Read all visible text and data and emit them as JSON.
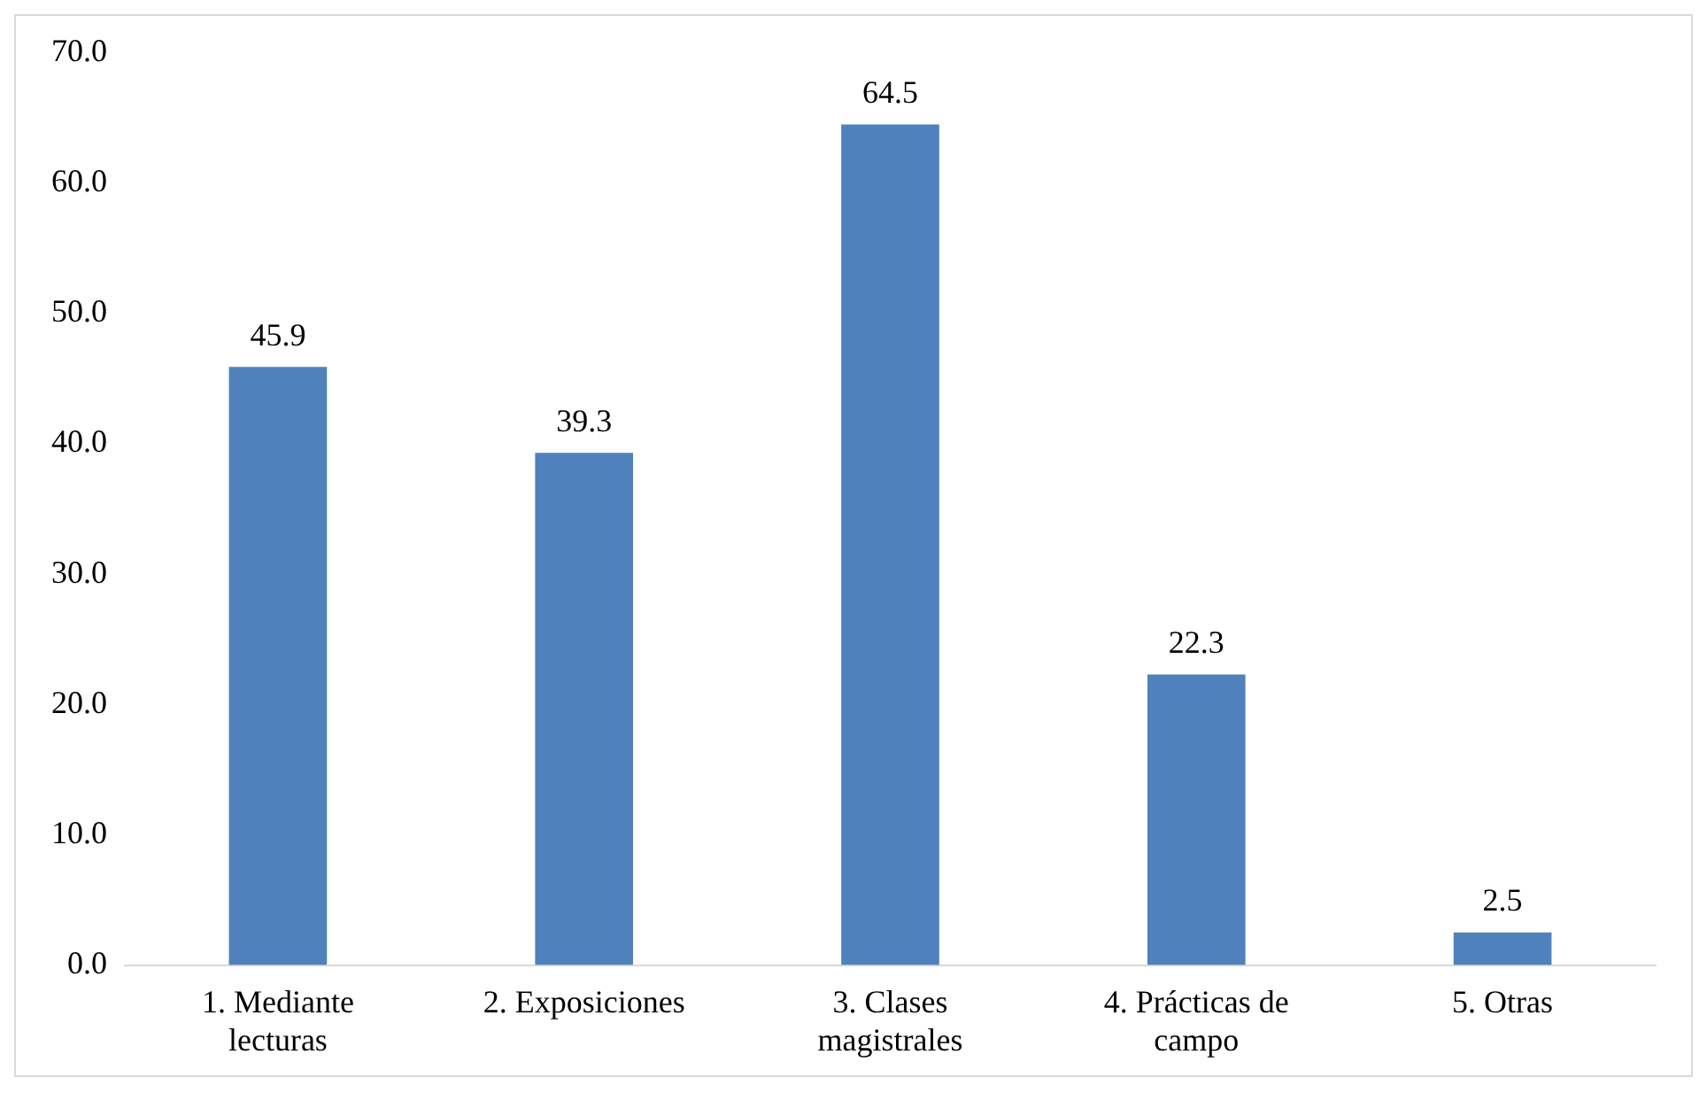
{
  "chart_data": {
    "type": "bar",
    "categories": [
      "1. Mediante lecturas",
      "2. Exposiciones",
      "3. Clases magistrales",
      "4. Prácticas de campo",
      "5. Otras"
    ],
    "values": [
      45.9,
      39.3,
      64.5,
      22.3,
      2.5
    ],
    "color": "#4f81bd",
    "ylim": [
      0,
      70
    ],
    "yticks": [
      {
        "value": 0,
        "label": "0.0"
      },
      {
        "value": 10,
        "label": "10.0"
      },
      {
        "value": 20,
        "label": "20.0"
      },
      {
        "value": 30,
        "label": "30.0"
      },
      {
        "value": 40,
        "label": "40.0"
      },
      {
        "value": 50,
        "label": "50.0"
      },
      {
        "value": 60,
        "label": "60.0"
      },
      {
        "value": 70,
        "label": "70.0"
      }
    ],
    "grid": false,
    "data_labels": true,
    "legend": false
  }
}
